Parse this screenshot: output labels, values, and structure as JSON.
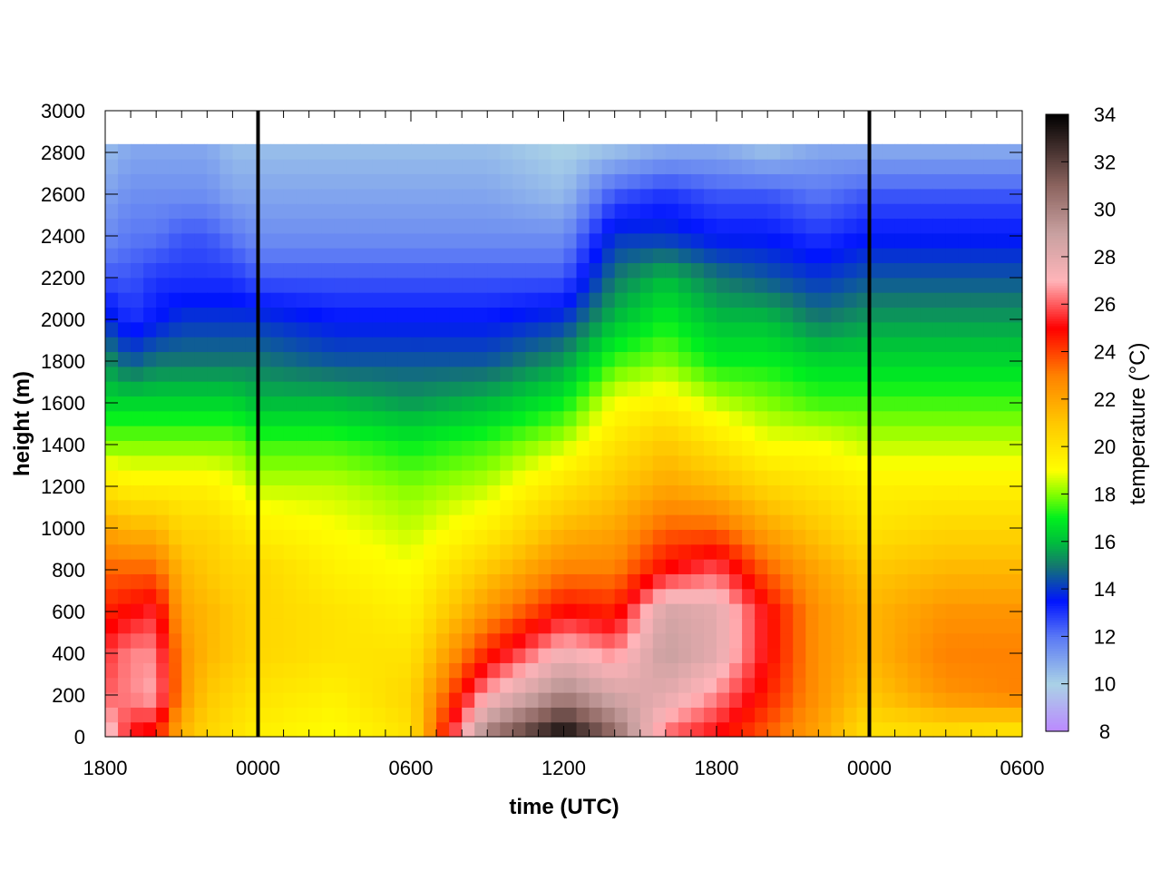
{
  "chart_data": {
    "type": "heatmap",
    "title": "",
    "xlabel": "time (UTC)",
    "ylabel": "height (m)",
    "colorbar_label": "temperature (°C)",
    "x_tick_labels": [
      "1800",
      "0000",
      "0600",
      "1200",
      "1800",
      "0000",
      "0600"
    ],
    "x_range_hours": [
      0,
      36
    ],
    "y_ticks": [
      0,
      200,
      400,
      600,
      800,
      1000,
      1200,
      1400,
      1600,
      1800,
      2000,
      2200,
      2400,
      2600,
      2800,
      3000
    ],
    "ylim": [
      0,
      3000
    ],
    "data_top_height": 2840,
    "color_ticks": [
      8,
      10,
      12,
      14,
      16,
      18,
      20,
      22,
      24,
      26,
      28,
      30,
      32,
      34
    ],
    "clim": [
      8,
      34
    ],
    "vertical_markers_hours": [
      6,
      30
    ],
    "grid": false,
    "temperature_field": {
      "description_units": "deg C",
      "columns_hours": [
        0,
        1,
        2,
        3,
        4,
        5,
        6,
        9,
        12,
        15,
        18,
        20,
        22,
        24,
        26,
        28,
        30,
        33,
        36
      ],
      "heights_m": [
        0,
        200,
        400,
        600,
        800,
        1000,
        1200,
        1400,
        1600,
        1800,
        2000,
        2200,
        2400,
        2600,
        2800
      ],
      "values": [
        [
          28,
          26,
          25.5,
          24.5,
          23.5,
          22,
          20,
          18,
          16.5,
          15.5,
          14,
          12.5,
          11.5,
          11,
          10.5
        ],
        [
          25,
          26.5,
          26.5,
          25,
          23.5,
          21.5,
          19.5,
          18,
          16.5,
          14.5,
          13,
          12.5,
          12,
          11.5,
          11
        ],
        [
          24.5,
          27,
          26.5,
          25.5,
          23.5,
          21.5,
          19.5,
          18,
          16.5,
          15,
          13.5,
          13,
          12,
          11.5,
          11
        ],
        [
          21.5,
          22.5,
          22.5,
          22,
          21.5,
          20.5,
          19.5,
          18,
          16.5,
          15,
          14,
          13,
          12.5,
          11.5,
          11
        ],
        [
          20.5,
          21,
          21.5,
          21.5,
          21,
          20.5,
          19.5,
          18,
          16.5,
          15,
          14,
          13,
          12.5,
          11.5,
          11
        ],
        [
          20,
          20.5,
          21,
          21,
          20.5,
          20,
          19,
          18,
          16.5,
          15,
          14,
          13,
          12,
          11,
          10.5
        ],
        [
          19.5,
          20,
          20.5,
          20.5,
          20.5,
          19.5,
          18.5,
          17.5,
          16,
          15,
          14,
          12.5,
          11.5,
          11,
          10.5
        ],
        [
          19,
          19.5,
          20,
          20,
          19.5,
          19,
          18.5,
          17.5,
          16,
          14.5,
          13.5,
          12.5,
          11.5,
          11,
          10.5
        ],
        [
          20,
          20.5,
          20,
          19.5,
          19,
          18.5,
          18,
          17,
          15.5,
          14.5,
          13.5,
          12.5,
          11.5,
          11,
          10.5
        ],
        [
          30.5,
          27,
          24.5,
          22.5,
          21,
          19.5,
          18.5,
          17.5,
          16,
          14.5,
          13.5,
          12.5,
          11.5,
          11,
          10.5
        ],
        [
          34,
          30,
          27.5,
          25,
          23,
          21.5,
          20,
          18.5,
          17,
          15.5,
          14,
          12.5,
          11.5,
          10.5,
          10
        ],
        [
          31,
          28.5,
          26.5,
          24.5,
          23,
          22,
          21,
          20,
          19,
          17.5,
          16,
          15,
          14,
          12.5,
          10.5
        ],
        [
          26,
          28,
          29,
          28.5,
          25,
          23.5,
          22,
          21,
          19.5,
          18,
          17,
          16,
          14,
          13,
          11
        ],
        [
          25,
          26.5,
          28,
          28,
          26,
          23.5,
          21.5,
          20,
          18.5,
          17,
          16,
          15,
          13.5,
          12.5,
          11
        ],
        [
          23.5,
          24.5,
          25,
          25,
          23.5,
          22,
          20.5,
          19,
          18,
          17,
          16,
          14.5,
          13.5,
          12.5,
          10.5
        ],
        [
          22,
          22.5,
          22.5,
          22.5,
          22,
          21,
          20,
          19,
          17.5,
          16.5,
          15,
          14,
          13,
          12,
          11
        ],
        [
          20,
          21,
          21.5,
          21.5,
          21,
          20,
          19.5,
          18.5,
          17.5,
          16.5,
          15.5,
          14.5,
          13.5,
          12.5,
          11
        ],
        [
          20,
          22.5,
          23,
          22.5,
          21.5,
          20.5,
          19.5,
          18.5,
          17.5,
          16.5,
          15.5,
          14.5,
          13.5,
          12.5,
          11
        ],
        [
          19.5,
          23,
          23,
          22.5,
          21.5,
          20.5,
          19.5,
          18.5,
          17.5,
          16.5,
          15.5,
          14.5,
          13.5,
          12.5,
          11
        ]
      ]
    }
  }
}
